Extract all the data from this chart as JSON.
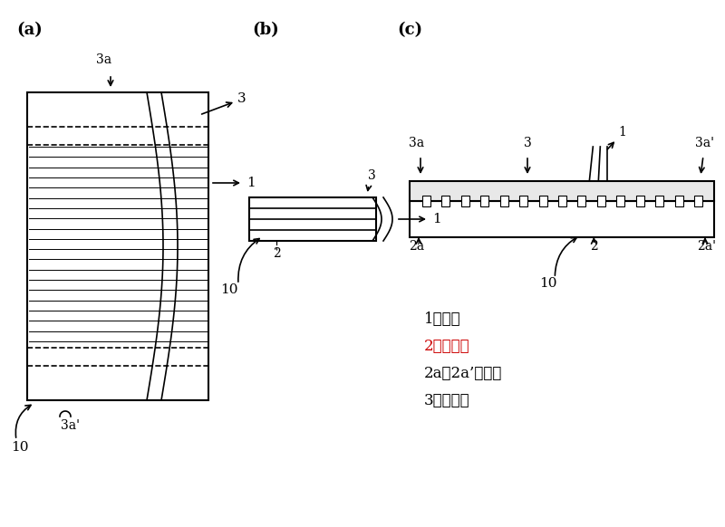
{
  "bg_color": "#ffffff",
  "line_color": "#000000",
  "label_a": "(a)",
  "label_b": "(b)",
  "label_c": "(c)",
  "legend_lines": [
    "1：芯体",
    "2：下覆层",
    "2a，2a’：端面",
    "3：上覆层"
  ],
  "legend_colors": [
    "#000000",
    "#cc0000",
    "#000000",
    "#000000"
  ]
}
